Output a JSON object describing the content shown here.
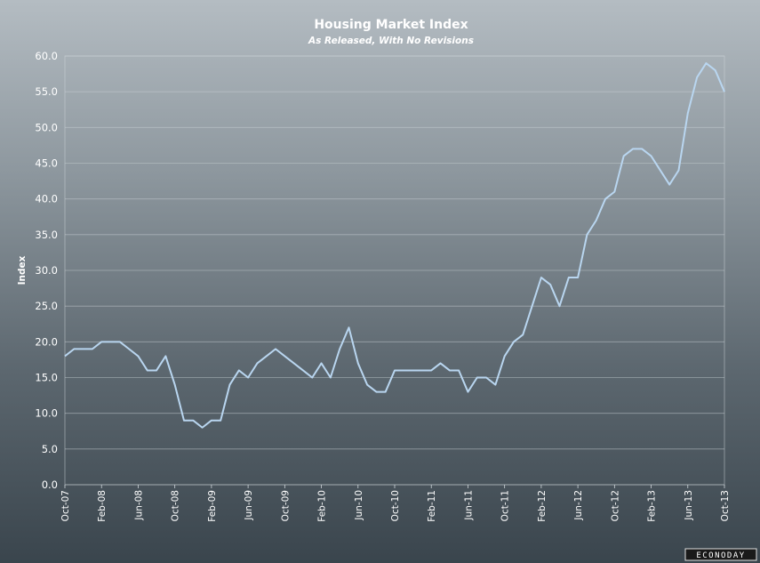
{
  "chart_data": {
    "type": "line",
    "title": "Housing Market Index",
    "subtitle": "As Released, With No Revisions",
    "ylabel": "Index",
    "xlabel": "",
    "ylim": [
      0,
      60
    ],
    "yticks": [
      "0.0",
      "5.0",
      "10.0",
      "15.0",
      "20.0",
      "25.0",
      "30.0",
      "35.0",
      "40.0",
      "45.0",
      "50.0",
      "55.0",
      "60.0"
    ],
    "xtick_labels": [
      "Oct-07",
      "Feb-08",
      "Jun-08",
      "Oct-08",
      "Feb-09",
      "Jun-09",
      "Oct-09",
      "Feb-10",
      "Jun-10",
      "Oct-10",
      "Feb-11",
      "Jun-11",
      "Oct-11",
      "Feb-12",
      "Jun-12",
      "Oct-12",
      "Feb-13",
      "Jun-13",
      "Oct-13"
    ],
    "x": [
      "Oct-07",
      "Nov-07",
      "Dec-07",
      "Jan-08",
      "Feb-08",
      "Mar-08",
      "Apr-08",
      "May-08",
      "Jun-08",
      "Jul-08",
      "Aug-08",
      "Sep-08",
      "Oct-08",
      "Nov-08",
      "Dec-08",
      "Jan-09",
      "Feb-09",
      "Mar-09",
      "Apr-09",
      "May-09",
      "Jun-09",
      "Jul-09",
      "Aug-09",
      "Sep-09",
      "Oct-09",
      "Nov-09",
      "Dec-09",
      "Jan-10",
      "Feb-10",
      "Mar-10",
      "Apr-10",
      "May-10",
      "Jun-10",
      "Jul-10",
      "Aug-10",
      "Sep-10",
      "Oct-10",
      "Nov-10",
      "Dec-10",
      "Jan-11",
      "Feb-11",
      "Mar-11",
      "Apr-11",
      "May-11",
      "Jun-11",
      "Jul-11",
      "Aug-11",
      "Sep-11",
      "Oct-11",
      "Nov-11",
      "Dec-11",
      "Jan-12",
      "Feb-12",
      "Mar-12",
      "Apr-12",
      "May-12",
      "Jun-12",
      "Jul-12",
      "Aug-12",
      "Sep-12",
      "Oct-12",
      "Nov-12",
      "Dec-12",
      "Jan-13",
      "Feb-13",
      "Mar-13",
      "Apr-13",
      "May-13",
      "Jun-13",
      "Jul-13",
      "Aug-13",
      "Sep-13",
      "Oct-13"
    ],
    "series": [
      {
        "values": [
          18,
          19,
          19,
          19,
          20,
          20,
          20,
          19,
          18,
          16,
          16,
          18,
          14,
          9,
          9,
          8,
          9,
          9,
          14,
          16,
          15,
          17,
          18,
          19,
          18,
          17,
          16,
          15,
          17,
          15,
          19,
          22,
          17,
          14,
          13,
          13,
          16,
          16,
          16,
          16,
          16,
          17,
          16,
          16,
          13,
          15,
          15,
          14,
          18,
          20,
          21,
          25,
          29,
          28,
          25,
          29,
          29,
          35,
          37,
          40,
          41,
          46,
          47,
          47,
          46,
          44,
          42,
          44,
          52,
          57,
          59,
          58,
          55
        ],
        "color": "#b9d6f0"
      }
    ],
    "grid": true,
    "legend": "none"
  },
  "branding": {
    "logo_text": "ECONODAY"
  }
}
